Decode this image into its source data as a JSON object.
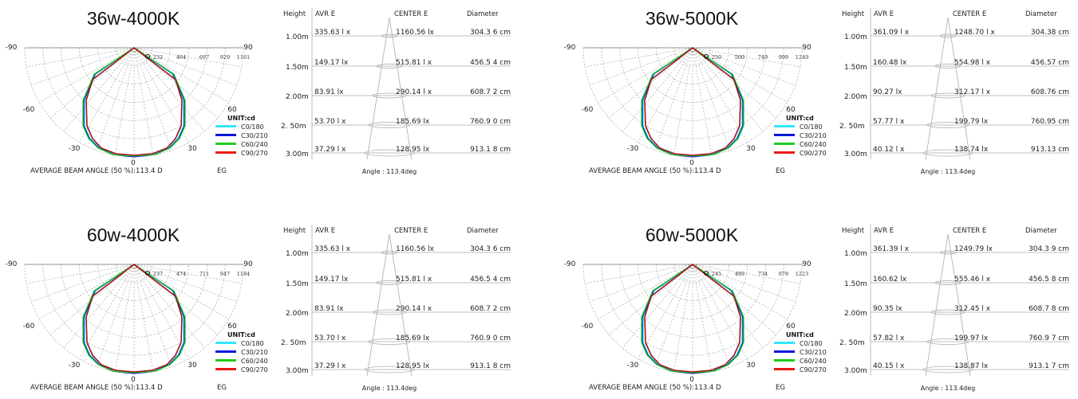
{
  "legend": {
    "unit": "UNIT:cd",
    "items": [
      {
        "label": "C0/180",
        "color": "#33e6ff"
      },
      {
        "label": "C30/210",
        "color": "#0a17d6"
      },
      {
        "label": "C60/240",
        "color": "#22cc22"
      },
      {
        "label": "C90/270",
        "color": "#e81818"
      }
    ]
  },
  "polar_angle_labels": {
    "left90": "-90",
    "left60": "-60",
    "left30": "-30",
    "zero": "0",
    "right30": "30",
    "right60": "60",
    "right90": "90"
  },
  "beam_caption": {
    "text": "AVERAGE BEAM ANGLE  (50 %):113.4 D",
    "suffix": "EG"
  },
  "table_headers": {
    "height": "Height",
    "avr": "AVR E",
    "center": "CENTER E",
    "diameter": "Diameter"
  },
  "panels": [
    {
      "title": "36w-4000K",
      "ticks": [
        "232",
        "464",
        "697",
        "929",
        "1161"
      ],
      "table": {
        "rows": [
          {
            "h": "1.00m",
            "avr": "335.63  l x",
            "center": "1160.56  lx",
            "diam": "304.3 6 cm"
          },
          {
            "h": "1.50m",
            "avr": "149.17  lx",
            "center": "515.81  l x",
            "diam": "456.5 4 cm"
          },
          {
            "h": "2.00m",
            "avr": "83.91  lx",
            "center": "290.14  l x",
            "diam": "608.7 2 cm"
          },
          {
            "h": "2. 50m",
            "avr": "53.70  l x",
            "center": "185.69  lx",
            "diam": "760.9 0 cm"
          },
          {
            "h": "3.00m",
            "avr": "37.29  l x",
            "center": "128.95  lx",
            "diam": "913.1 8 cm"
          }
        ],
        "angle": "Angle : 113.4deg"
      }
    },
    {
      "title": "36w-5000K",
      "ticks": [
        "250",
        "500",
        "749",
        "999",
        "1249"
      ],
      "table": {
        "rows": [
          {
            "h": "1.00m",
            "avr": "361.09  l x",
            "center": "1248.70  l x",
            "diam": "304.38  cm"
          },
          {
            "h": "1.50m",
            "avr": "160.48  lx",
            "center": "554.98  l x",
            "diam": "456.57  cm"
          },
          {
            "h": "2.00m",
            "avr": "90.27  lx",
            "center": "312.17  l x",
            "diam": "608.76  cm"
          },
          {
            "h": "2. 50m",
            "avr": "57.77  l x",
            "center": "199.79  lx",
            "diam": "760.95  cm"
          },
          {
            "h": "3.00m",
            "avr": "40.12  l x",
            "center": "138.74  lx",
            "diam": "913.13  cm"
          }
        ],
        "angle": "Angle : 113.4deg"
      }
    },
    {
      "title": "60w-4000K",
      "ticks": [
        "237",
        "474",
        "711",
        "947",
        "1184"
      ],
      "table": {
        "rows": [
          {
            "h": "1.00m",
            "avr": "335.63  l x",
            "center": "1160.56  lx",
            "diam": "304.3 6 cm"
          },
          {
            "h": "1.50m",
            "avr": "149.17  lx",
            "center": "515.81  l x",
            "diam": "456.5 4 cm"
          },
          {
            "h": "2.00m",
            "avr": "83.91  lx",
            "center": "290.14  l x",
            "diam": "608.7 2 cm"
          },
          {
            "h": "2. 50m",
            "avr": "53.70  l x",
            "center": "185.69  lx",
            "diam": "760.9 0 cm"
          },
          {
            "h": "3.00m",
            "avr": "37.29  l x",
            "center": "128.95  lx",
            "diam": "913.1 8 cm"
          }
        ],
        "angle": "Angle : 113.4deg"
      }
    },
    {
      "title": "60w-5000K",
      "ticks": [
        "245",
        "489",
        "734",
        "978",
        "1223"
      ],
      "table": {
        "rows": [
          {
            "h": "1.00m",
            "avr": "361.39  l x",
            "center": "1249.79  lx",
            "diam": "304.3 9 cm"
          },
          {
            "h": "1.50m",
            "avr": "160.62  lx",
            "center": "555.46  l x",
            "diam": "456.5 8 cm"
          },
          {
            "h": "2.00m",
            "avr": "90.35  lx",
            "center": "312.45  l x",
            "diam": "608.7 8 cm"
          },
          {
            "h": "2. 50m",
            "avr": "57.82  l x",
            "center": "199.97  lx",
            "diam": "760.9 7 cm"
          },
          {
            "h": "3.00m",
            "avr": "40.15  l x",
            "center": "138.87  lx",
            "diam": "913.1 7 cm"
          }
        ],
        "angle": "Angle : 113.4deg"
      }
    }
  ]
}
